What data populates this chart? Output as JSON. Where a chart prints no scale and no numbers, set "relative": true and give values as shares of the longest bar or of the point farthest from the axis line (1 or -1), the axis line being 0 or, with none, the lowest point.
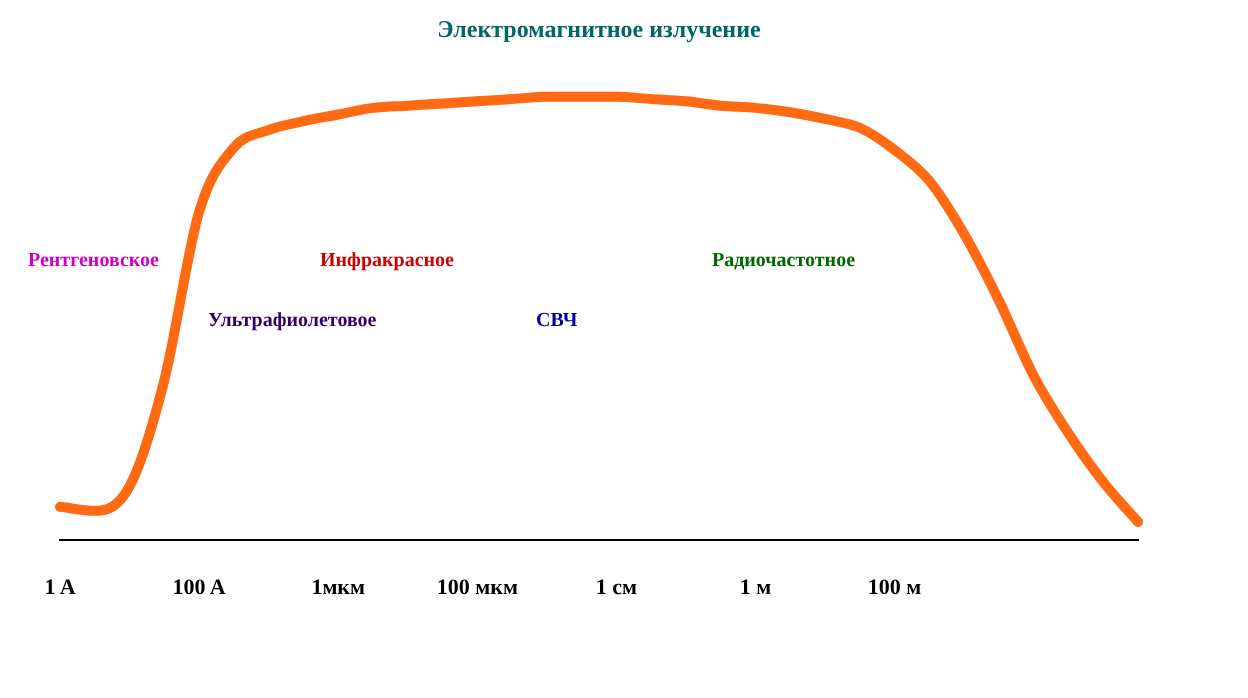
{
  "chart_data": {
    "type": "line",
    "title": "Электромагнитное излучение",
    "relative": true,
    "grid": false,
    "legend": false,
    "marker": "none",
    "line_style": "solid",
    "categories": [
      "1 A",
      null,
      null,
      null,
      "100 A",
      null,
      null,
      null,
      "1мкм",
      null,
      null,
      null,
      "100 мкм",
      null,
      null,
      null,
      "1 см",
      null,
      null,
      null,
      "1 м",
      null,
      null,
      null,
      "100 м",
      null,
      null,
      null,
      null,
      null,
      null,
      null
    ],
    "annotations": [
      "Рентгеновское",
      "Ультрафиолетовое",
      "Инфракрасное",
      "СВЧ",
      "Радиочастотное"
    ],
    "series": [
      {
        "color": "#ff6a13",
        "values": [
          0.074,
          0.065,
          0.12,
          0.36,
          0.74,
          0.885,
          0.925,
          0.945,
          0.96,
          0.975,
          0.98,
          0.985,
          0.99,
          0.995,
          1.0,
          1.0,
          1.0,
          0.995,
          0.99,
          0.98,
          0.975,
          0.965,
          0.95,
          0.93,
          0.88,
          0.81,
          0.69,
          0.54,
          0.37,
          0.24,
          0.13,
          0.04
        ]
      }
    ]
  }
}
